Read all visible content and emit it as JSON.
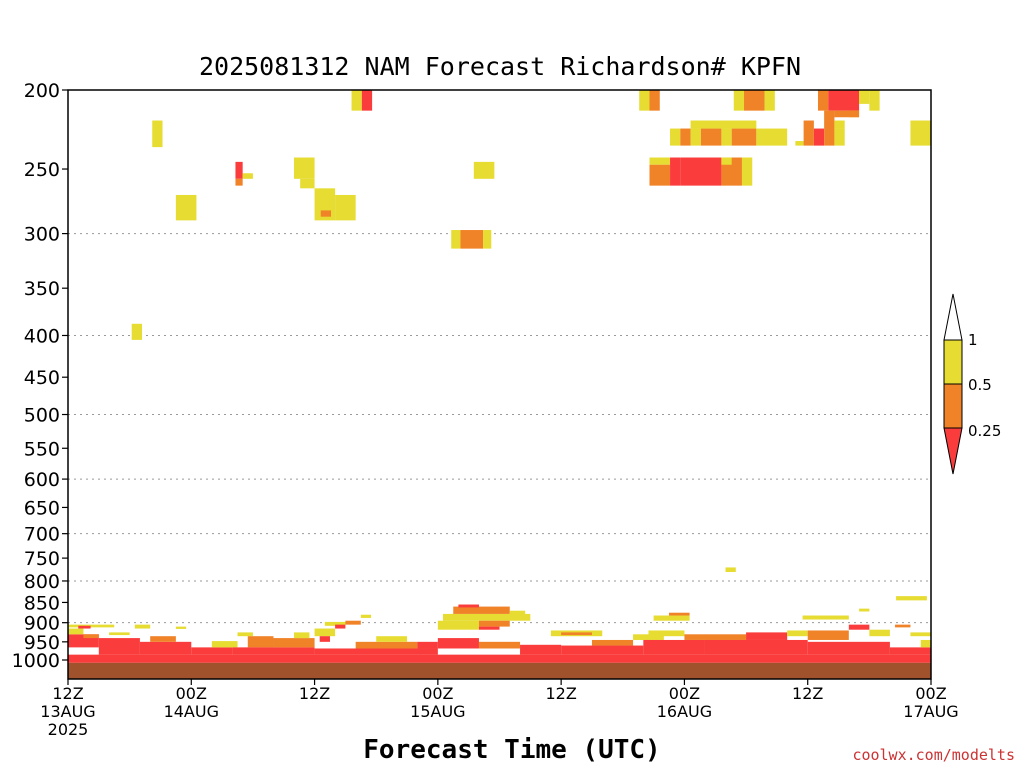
{
  "chart_data": {
    "type": "heatmap",
    "title": "2025081312 NAM Forecast Richardson# KPFN",
    "xlabel": "Forecast Time (UTC)",
    "credit": "coolwx.com/modelts",
    "y_axis": {
      "reversed": true,
      "log_scale": true,
      "ylim": [
        1000,
        200
      ],
      "ticks": [
        200,
        250,
        300,
        350,
        400,
        450,
        500,
        550,
        600,
        650,
        700,
        750,
        800,
        850,
        900,
        950,
        1000
      ],
      "gridlines": [
        300,
        400,
        500,
        600,
        700,
        800,
        900,
        1000
      ]
    },
    "x_axis": {
      "start": "2025081312",
      "end": "2025081700",
      "ticks": [
        {
          "hour": 0,
          "label1": "12Z",
          "label2": "13AUG",
          "label3": "2025"
        },
        {
          "hour": 12,
          "label1": "00Z",
          "label2": "14AUG",
          "label3": ""
        },
        {
          "hour": 24,
          "label1": "12Z",
          "label2": "",
          "label3": ""
        },
        {
          "hour": 36,
          "label1": "00Z",
          "label2": "15AUG",
          "label3": ""
        },
        {
          "hour": 48,
          "label1": "12Z",
          "label2": "",
          "label3": ""
        },
        {
          "hour": 60,
          "label1": "00Z",
          "label2": "16AUG",
          "label3": ""
        },
        {
          "hour": 72,
          "label1": "12Z",
          "label2": "",
          "label3": ""
        },
        {
          "hour": 84,
          "label1": "00Z",
          "label2": "17AUG",
          "label3": ""
        }
      ]
    },
    "colorbar": {
      "labels": [
        "1",
        "0.5",
        "0.25"
      ],
      "bins": [
        {
          "range": "0.5-1",
          "color": "#e6dc32"
        },
        {
          "range": "0.25-0.5",
          "color": "#f08228"
        },
        {
          "range": "<0.25",
          "color": "#fa3c3c"
        }
      ],
      "top_color": "#ffffff"
    },
    "ground_color": "#a0522d",
    "cells": [
      {
        "h0": 27.6,
        "h1": 28.6,
        "p0": 200,
        "p1": 212,
        "c": "y"
      },
      {
        "h0": 28.6,
        "h1": 29.6,
        "p0": 200,
        "p1": 212,
        "c": "r"
      },
      {
        "h0": 8.2,
        "h1": 9.2,
        "p0": 218,
        "p1": 235,
        "c": "y"
      },
      {
        "h0": 16.3,
        "h1": 17.0,
        "p0": 245,
        "p1": 257,
        "c": "r"
      },
      {
        "h0": 16.3,
        "h1": 17.0,
        "p0": 257,
        "p1": 262,
        "c": "o"
      },
      {
        "h0": 17.0,
        "h1": 18.0,
        "p0": 253,
        "p1": 257,
        "c": "y"
      },
      {
        "h0": 22.0,
        "h1": 24.0,
        "p0": 242,
        "p1": 257,
        "c": "y"
      },
      {
        "h0": 22.6,
        "h1": 24.0,
        "p0": 257,
        "p1": 264,
        "c": "y"
      },
      {
        "h0": 24.0,
        "h1": 26.0,
        "p0": 264,
        "p1": 289,
        "c": "y"
      },
      {
        "h0": 26.0,
        "h1": 28.0,
        "p0": 269,
        "p1": 289,
        "c": "y"
      },
      {
        "h0": 24.6,
        "h1": 25.6,
        "p0": 281,
        "p1": 286,
        "c": "o"
      },
      {
        "h0": 10.5,
        "h1": 12.5,
        "p0": 269,
        "p1": 289,
        "c": "y"
      },
      {
        "h0": 6.2,
        "h1": 7.2,
        "p0": 387,
        "p1": 405,
        "c": "y"
      },
      {
        "h0": 39.5,
        "h1": 41.5,
        "p0": 245,
        "p1": 257,
        "c": "y"
      },
      {
        "h0": 37.3,
        "h1": 38.2,
        "p0": 297,
        "p1": 313,
        "c": "y"
      },
      {
        "h0": 38.2,
        "h1": 40.4,
        "p0": 297,
        "p1": 313,
        "c": "o"
      },
      {
        "h0": 40.4,
        "h1": 41.2,
        "p0": 297,
        "p1": 313,
        "c": "y"
      },
      {
        "h0": 55.6,
        "h1": 56.6,
        "p0": 200,
        "p1": 212,
        "c": "y"
      },
      {
        "h0": 56.6,
        "h1": 57.6,
        "p0": 200,
        "p1": 212,
        "c": "o"
      },
      {
        "h0": 64.8,
        "h1": 65.8,
        "p0": 200,
        "p1": 212,
        "c": "y"
      },
      {
        "h0": 65.8,
        "h1": 67.8,
        "p0": 200,
        "p1": 212,
        "c": "o"
      },
      {
        "h0": 67.8,
        "h1": 68.8,
        "p0": 200,
        "p1": 212,
        "c": "y"
      },
      {
        "h0": 73.0,
        "h1": 74.0,
        "p0": 200,
        "p1": 212,
        "c": "o"
      },
      {
        "h0": 74.0,
        "h1": 77.0,
        "p0": 200,
        "p1": 212,
        "c": "r"
      },
      {
        "h0": 77.0,
        "h1": 78.0,
        "p0": 200,
        "p1": 208,
        "c": "y"
      },
      {
        "h0": 78.0,
        "h1": 79.0,
        "p0": 200,
        "p1": 212,
        "c": "y"
      },
      {
        "h0": 76.0,
        "h1": 77.0,
        "p0": 212,
        "p1": 216,
        "c": "y"
      },
      {
        "h0": 58.6,
        "h1": 59.6,
        "p0": 223,
        "p1": 234,
        "c": "y"
      },
      {
        "h0": 59.6,
        "h1": 60.6,
        "p0": 223,
        "p1": 234,
        "c": "o"
      },
      {
        "h0": 60.6,
        "h1": 61.6,
        "p0": 223,
        "p1": 234,
        "c": "y"
      },
      {
        "h0": 61.6,
        "h1": 63.6,
        "p0": 223,
        "p1": 234,
        "c": "o"
      },
      {
        "h0": 63.6,
        "h1": 64.6,
        "p0": 223,
        "p1": 234,
        "c": "y"
      },
      {
        "h0": 64.6,
        "h1": 67.0,
        "p0": 223,
        "p1": 234,
        "c": "o"
      },
      {
        "h0": 67.0,
        "h1": 70.0,
        "p0": 223,
        "p1": 234,
        "c": "y"
      },
      {
        "h0": 60.6,
        "h1": 67.0,
        "p0": 218,
        "p1": 223,
        "c": "y"
      },
      {
        "h0": 70.8,
        "h1": 71.6,
        "p0": 231,
        "p1": 234,
        "c": "y"
      },
      {
        "h0": 71.6,
        "h1": 72.6,
        "p0": 218,
        "p1": 234,
        "c": "o"
      },
      {
        "h0": 72.6,
        "h1": 73.6,
        "p0": 223,
        "p1": 234,
        "c": "r"
      },
      {
        "h0": 73.6,
        "h1": 74.6,
        "p0": 218,
        "p1": 234,
        "c": "o"
      },
      {
        "h0": 74.6,
        "h1": 75.6,
        "p0": 218,
        "p1": 223,
        "c": "y"
      },
      {
        "h0": 74.6,
        "h1": 75.6,
        "p0": 223,
        "p1": 234,
        "c": "y"
      },
      {
        "h0": 73.6,
        "h1": 74.6,
        "p0": 212,
        "p1": 218,
        "c": "o"
      },
      {
        "h0": 74.6,
        "h1": 77.0,
        "p0": 212,
        "p1": 216,
        "c": "o"
      },
      {
        "h0": 82.0,
        "h1": 84.0,
        "p0": 218,
        "p1": 234,
        "c": "y"
      },
      {
        "h0": 56.6,
        "h1": 58.6,
        "p0": 242,
        "p1": 247,
        "c": "y"
      },
      {
        "h0": 56.6,
        "h1": 58.6,
        "p0": 247,
        "p1": 262,
        "c": "o"
      },
      {
        "h0": 58.6,
        "h1": 59.6,
        "p0": 242,
        "p1": 262,
        "c": "r"
      },
      {
        "h0": 59.6,
        "h1": 63.6,
        "p0": 242,
        "p1": 262,
        "c": "r"
      },
      {
        "h0": 63.6,
        "h1": 65.6,
        "p0": 242,
        "p1": 262,
        "c": "o"
      },
      {
        "h0": 65.6,
        "h1": 66.6,
        "p0": 242,
        "p1": 262,
        "c": "y"
      },
      {
        "h0": 63.6,
        "h1": 64.6,
        "p0": 242,
        "p1": 247,
        "c": "y"
      },
      {
        "h0": 64.0,
        "h1": 65.0,
        "p0": 770,
        "p1": 780,
        "c": "y"
      },
      {
        "h0": 80.6,
        "h1": 83.6,
        "p0": 835,
        "p1": 845,
        "c": "y"
      },
      {
        "h0": 0,
        "h1": 84,
        "p0": 985,
        "p1": 1008,
        "c": "r"
      },
      {
        "h0": 0,
        "h1": 4.5,
        "p0": 905,
        "p1": 912,
        "c": "y"
      },
      {
        "h0": 1.0,
        "h1": 2.2,
        "p0": 908,
        "p1": 915,
        "c": "r"
      },
      {
        "h0": 0,
        "h1": 3.0,
        "p0": 930,
        "p1": 965,
        "c": "r"
      },
      {
        "h0": 0,
        "h1": 1.5,
        "p0": 915,
        "p1": 930,
        "c": "y"
      },
      {
        "h0": 1.5,
        "h1": 3.0,
        "p0": 930,
        "p1": 940,
        "c": "o"
      },
      {
        "h0": 3.0,
        "h1": 7.0,
        "p0": 940,
        "p1": 985,
        "c": "r"
      },
      {
        "h0": 4.0,
        "h1": 6.0,
        "p0": 925,
        "p1": 932,
        "c": "y"
      },
      {
        "h0": 6.5,
        "h1": 8.0,
        "p0": 905,
        "p1": 915,
        "c": "y"
      },
      {
        "h0": 7.0,
        "h1": 12.0,
        "p0": 950,
        "p1": 985,
        "c": "r"
      },
      {
        "h0": 8.0,
        "h1": 10.5,
        "p0": 935,
        "p1": 950,
        "c": "o"
      },
      {
        "h0": 10.5,
        "h1": 11.5,
        "p0": 910,
        "p1": 916,
        "c": "y"
      },
      {
        "h0": 12.0,
        "h1": 16.0,
        "p0": 965,
        "p1": 985,
        "c": "r"
      },
      {
        "h0": 14.0,
        "h1": 16.5,
        "p0": 948,
        "p1": 965,
        "c": "y"
      },
      {
        "h0": 16.5,
        "h1": 18.0,
        "p0": 925,
        "p1": 935,
        "c": "y"
      },
      {
        "h0": 17.5,
        "h1": 20.0,
        "p0": 935,
        "p1": 965,
        "c": "o"
      },
      {
        "h0": 16.0,
        "h1": 24.0,
        "p0": 965,
        "p1": 985,
        "c": "r"
      },
      {
        "h0": 20.0,
        "h1": 24.0,
        "p0": 940,
        "p1": 965,
        "c": "o"
      },
      {
        "h0": 22.0,
        "h1": 23.5,
        "p0": 925,
        "p1": 940,
        "c": "y"
      },
      {
        "h0": 24.0,
        "h1": 26.0,
        "p0": 915,
        "p1": 935,
        "c": "y"
      },
      {
        "h0": 24.5,
        "h1": 25.5,
        "p0": 935,
        "p1": 950,
        "c": "r"
      },
      {
        "h0": 25.0,
        "h1": 27.0,
        "p0": 898,
        "p1": 908,
        "c": "y"
      },
      {
        "h0": 26.0,
        "h1": 27.0,
        "p0": 905,
        "p1": 915,
        "c": "r"
      },
      {
        "h0": 27.0,
        "h1": 28.5,
        "p0": 895,
        "p1": 905,
        "c": "o"
      },
      {
        "h0": 28.5,
        "h1": 29.5,
        "p0": 880,
        "p1": 888,
        "c": "y"
      },
      {
        "h0": 24.0,
        "h1": 36.0,
        "p0": 968,
        "p1": 985,
        "c": "r"
      },
      {
        "h0": 28.0,
        "h1": 34.0,
        "p0": 950,
        "p1": 968,
        "c": "o"
      },
      {
        "h0": 30.0,
        "h1": 33.0,
        "p0": 935,
        "p1": 950,
        "c": "y"
      },
      {
        "h0": 34.0,
        "h1": 36.0,
        "p0": 950,
        "p1": 968,
        "c": "r"
      },
      {
        "h0": 36.5,
        "h1": 45.0,
        "p0": 878,
        "p1": 895,
        "c": "y"
      },
      {
        "h0": 37.5,
        "h1": 43.0,
        "p0": 860,
        "p1": 878,
        "c": "o"
      },
      {
        "h0": 38.0,
        "h1": 40.0,
        "p0": 855,
        "p1": 862,
        "c": "r"
      },
      {
        "h0": 36.0,
        "h1": 40.0,
        "p0": 895,
        "p1": 918,
        "c": "y"
      },
      {
        "h0": 40.0,
        "h1": 43.0,
        "p0": 895,
        "p1": 910,
        "c": "o"
      },
      {
        "h0": 40.0,
        "h1": 42.0,
        "p0": 910,
        "p1": 918,
        "c": "r"
      },
      {
        "h0": 43.0,
        "h1": 44.5,
        "p0": 870,
        "p1": 880,
        "c": "y"
      },
      {
        "h0": 36.0,
        "h1": 40.0,
        "p0": 940,
        "p1": 968,
        "c": "r"
      },
      {
        "h0": 40.0,
        "h1": 44.0,
        "p0": 950,
        "p1": 968,
        "c": "o"
      },
      {
        "h0": 44.0,
        "h1": 48.0,
        "p0": 958,
        "p1": 985,
        "c": "r"
      },
      {
        "h0": 47.0,
        "h1": 52.0,
        "p0": 920,
        "p1": 935,
        "c": "y"
      },
      {
        "h0": 48.0,
        "h1": 51.0,
        "p0": 925,
        "p1": 932,
        "c": "o"
      },
      {
        "h0": 48.0,
        "h1": 56.0,
        "p0": 960,
        "p1": 985,
        "c": "r"
      },
      {
        "h0": 51.0,
        "h1": 55.0,
        "p0": 945,
        "p1": 960,
        "c": "o"
      },
      {
        "h0": 55.0,
        "h1": 58.0,
        "p0": 930,
        "p1": 945,
        "c": "y"
      },
      {
        "h0": 56.0,
        "h1": 62.0,
        "p0": 945,
        "p1": 985,
        "c": "r"
      },
      {
        "h0": 56.5,
        "h1": 60.0,
        "p0": 920,
        "p1": 935,
        "c": "y"
      },
      {
        "h0": 57.0,
        "h1": 60.5,
        "p0": 882,
        "p1": 895,
        "c": "y"
      },
      {
        "h0": 58.5,
        "h1": 60.5,
        "p0": 875,
        "p1": 882,
        "c": "o"
      },
      {
        "h0": 60.0,
        "h1": 66.0,
        "p0": 930,
        "p1": 945,
        "c": "o"
      },
      {
        "h0": 62.0,
        "h1": 72.0,
        "p0": 945,
        "p1": 985,
        "c": "r"
      },
      {
        "h0": 66.0,
        "h1": 70.0,
        "p0": 925,
        "p1": 945,
        "c": "r"
      },
      {
        "h0": 70.0,
        "h1": 72.0,
        "p0": 920,
        "p1": 935,
        "c": "y"
      },
      {
        "h0": 71.5,
        "h1": 76.0,
        "p0": 882,
        "p1": 892,
        "c": "y"
      },
      {
        "h0": 72.0,
        "h1": 76.0,
        "p0": 920,
        "p1": 945,
        "c": "o"
      },
      {
        "h0": 72.0,
        "h1": 80.0,
        "p0": 950,
        "p1": 985,
        "c": "r"
      },
      {
        "h0": 76.0,
        "h1": 78.0,
        "p0": 905,
        "p1": 918,
        "c": "r"
      },
      {
        "h0": 78.0,
        "h1": 80.0,
        "p0": 918,
        "p1": 935,
        "c": "y"
      },
      {
        "h0": 77.0,
        "h1": 78.0,
        "p0": 865,
        "p1": 872,
        "c": "y"
      },
      {
        "h0": 80.0,
        "h1": 84.0,
        "p0": 965,
        "p1": 985,
        "c": "r"
      },
      {
        "h0": 80.5,
        "h1": 82.0,
        "p0": 905,
        "p1": 912,
        "c": "o"
      },
      {
        "h0": 82.0,
        "h1": 84.0,
        "p0": 925,
        "p1": 935,
        "c": "y"
      },
      {
        "h0": 83.0,
        "h1": 84.0,
        "p0": 945,
        "p1": 965,
        "c": "y"
      }
    ]
  }
}
